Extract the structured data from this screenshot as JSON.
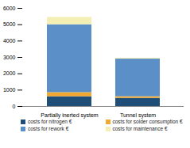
{
  "chart_data": {
    "type": "bar",
    "stacked": true,
    "categories": [
      "Partially inerted system",
      "Tunnel system"
    ],
    "series": [
      {
        "name": "costs for nitrogen €",
        "color": "#1f4e79",
        "values": [
          600,
          500
        ]
      },
      {
        "name": "costs for solder consumption €",
        "color": "#f0a830",
        "values": [
          250,
          100
        ]
      },
      {
        "name": "costs for rework €",
        "color": "#5b8fc7",
        "values": [
          4150,
          2300
        ]
      },
      {
        "name": "costs for maintenance €",
        "color": "#f3efb4",
        "values": [
          450,
          50
        ]
      }
    ],
    "ylim": [
      0,
      6000
    ],
    "yticks": [
      0,
      1000,
      2000,
      3000,
      4000,
      5000,
      6000
    ],
    "grid": false,
    "legend": "bottom"
  }
}
